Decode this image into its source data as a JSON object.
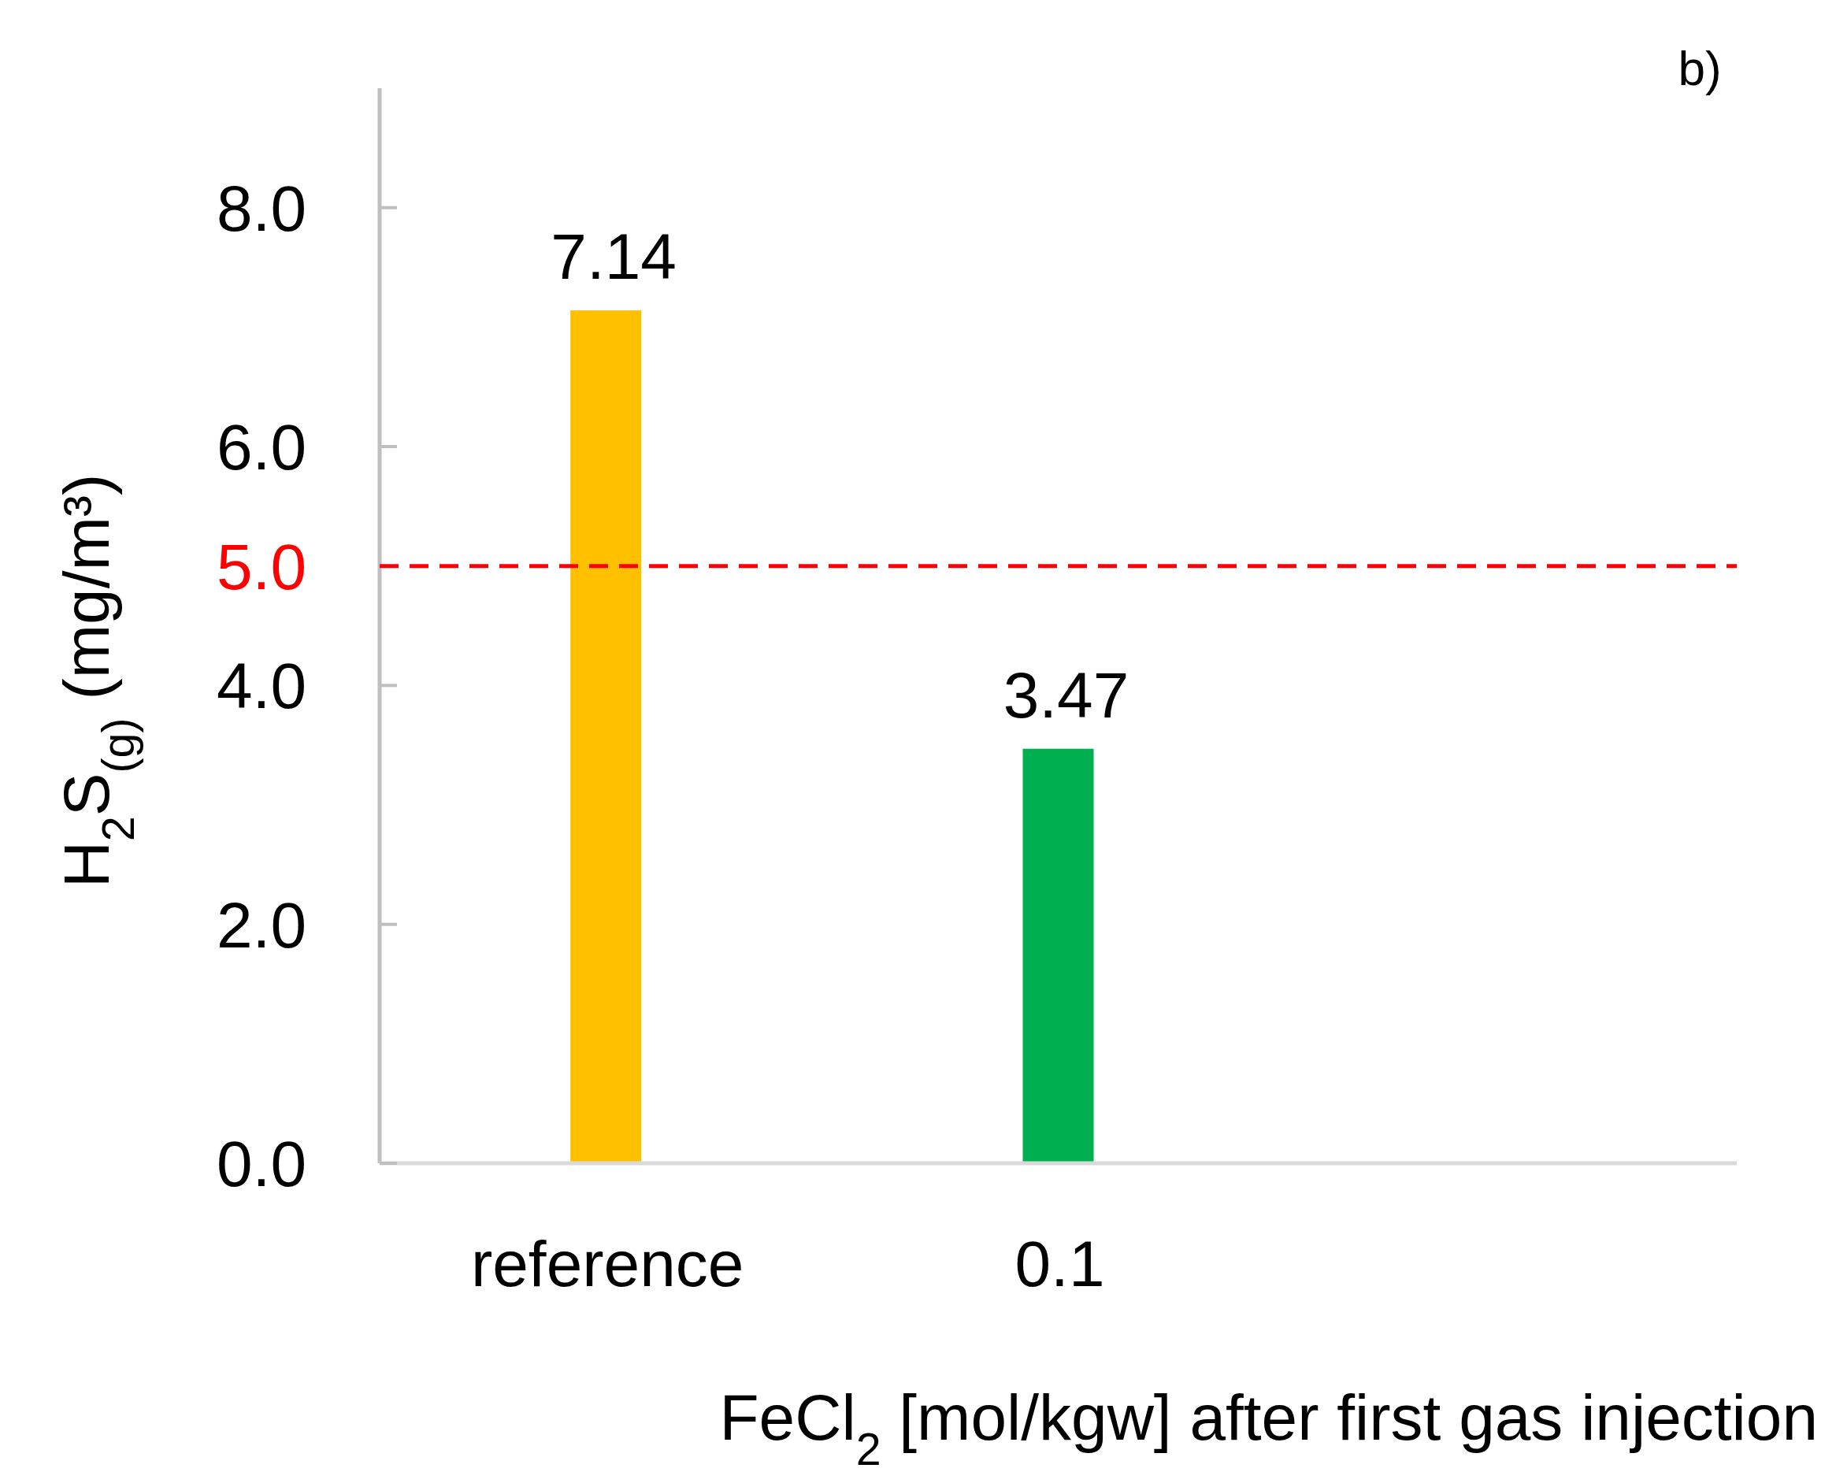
{
  "chart_data": {
    "type": "bar",
    "categories": [
      "reference",
      "0.1"
    ],
    "values": [
      7.14,
      3.47
    ],
    "colors": [
      "#ffc000",
      "#00b050"
    ],
    "xlabel": "FeCl$_{2}$ [mol/kgw] after first gas injection",
    "ylabel": "H$_{2}$S$_{(g)}$ (mg/m³)",
    "ylim": [
      0,
      9
    ],
    "yticks": [
      {
        "value": 0,
        "label": "0.0"
      },
      {
        "value": 2,
        "label": "2.0"
      },
      {
        "value": 4,
        "label": "4.0"
      },
      {
        "value": 6,
        "label": "6.0"
      },
      {
        "value": 8,
        "label": "8.0"
      }
    ],
    "ref_lines": [
      {
        "axis": "y",
        "value": 5,
        "label": "5.0",
        "color": "#ff0000",
        "line_style": "dashed"
      }
    ],
    "data_labels": true,
    "grid": false,
    "annotations": [
      "b)"
    ]
  }
}
